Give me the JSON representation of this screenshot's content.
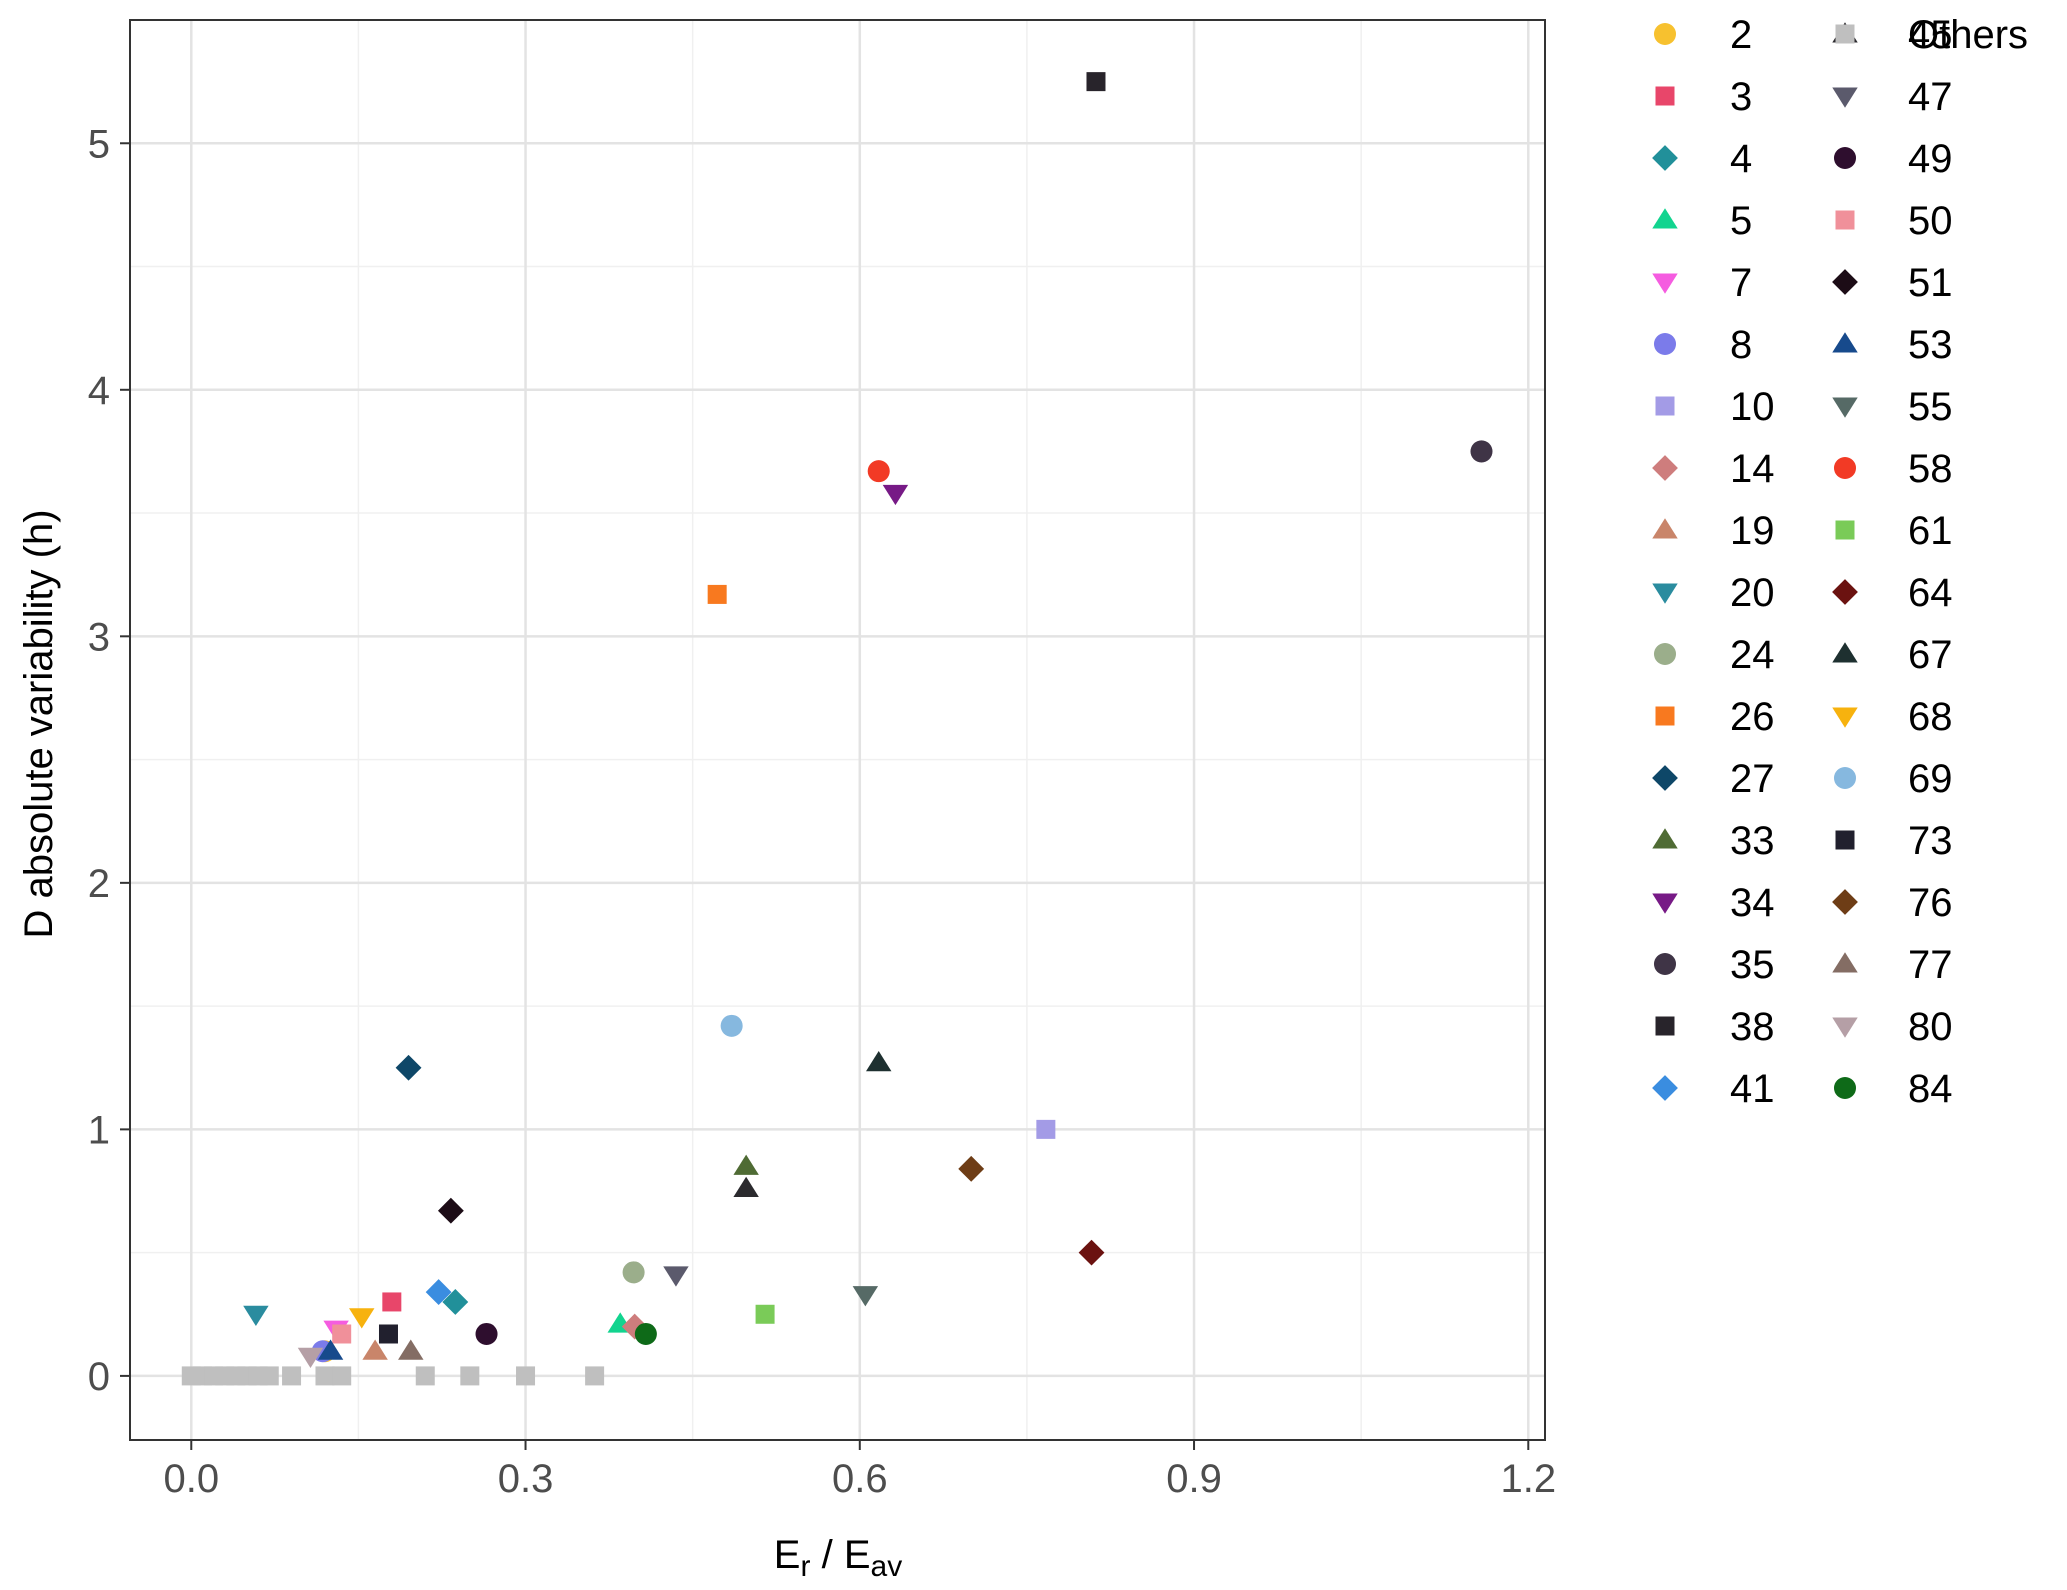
{
  "chart_data": {
    "type": "scatter",
    "xlabel": {
      "main": "E",
      "sub1": "r",
      "sep": " / E",
      "sub2": "av"
    },
    "ylabel": "D absolute variability (h)",
    "xlim": [
      -0.055,
      1.215
    ],
    "ylim": [
      -0.26,
      5.5
    ],
    "x_ticks": [
      0.0,
      0.3,
      0.6,
      0.9,
      1.2
    ],
    "x_tick_labels": [
      "0.0",
      "0.3",
      "0.6",
      "0.9",
      "1.2"
    ],
    "y_ticks": [
      0,
      1,
      2,
      3,
      4,
      5
    ],
    "y_tick_labels": [
      "0",
      "1",
      "2",
      "3",
      "4",
      "5"
    ],
    "grid": true,
    "legend_position": "right",
    "series": [
      {
        "name": "2",
        "color": "#F7C12F",
        "shape": "circle",
        "points": [
          [
            0.12,
            0.1
          ]
        ]
      },
      {
        "name": "3",
        "color": "#E8466A",
        "shape": "square",
        "points": [
          [
            0.18,
            0.3
          ]
        ]
      },
      {
        "name": "4",
        "color": "#21909A",
        "shape": "diamond",
        "points": [
          [
            0.237,
            0.3
          ]
        ]
      },
      {
        "name": "5",
        "color": "#12D48F",
        "shape": "triangle",
        "points": [
          [
            0.385,
            0.21
          ]
        ]
      },
      {
        "name": "7",
        "color": "#F55CE0",
        "shape": "tri-down",
        "points": [
          [
            0.13,
            0.19
          ]
        ]
      },
      {
        "name": "8",
        "color": "#7B7BEA",
        "shape": "circle",
        "points": [
          [
            0.118,
            0.1
          ]
        ]
      },
      {
        "name": "10",
        "color": "#A39BE6",
        "shape": "square",
        "points": [
          [
            0.767,
            1.0
          ]
        ]
      },
      {
        "name": "14",
        "color": "#CE7D7D",
        "shape": "diamond",
        "points": [
          [
            0.398,
            0.2
          ]
        ]
      },
      {
        "name": "19",
        "color": "#C9856A",
        "shape": "triangle",
        "points": [
          [
            0.165,
            0.1
          ]
        ]
      },
      {
        "name": "20",
        "color": "#2A8C9F",
        "shape": "tri-down",
        "points": [
          [
            0.058,
            0.25
          ]
        ]
      },
      {
        "name": "24",
        "color": "#9BAE8B",
        "shape": "circle",
        "points": [
          [
            0.397,
            0.42
          ]
        ]
      },
      {
        "name": "26",
        "color": "#F8791F",
        "shape": "square",
        "points": [
          [
            0.472,
            3.17
          ]
        ]
      },
      {
        "name": "27",
        "color": "#0E4768",
        "shape": "diamond",
        "points": [
          [
            0.195,
            1.25
          ]
        ]
      },
      {
        "name": "33",
        "color": "#4F6B34",
        "shape": "triangle",
        "points": [
          [
            0.498,
            0.85
          ]
        ]
      },
      {
        "name": "34",
        "color": "#771A86",
        "shape": "tri-down",
        "points": [
          [
            0.632,
            3.58
          ]
        ]
      },
      {
        "name": "35",
        "color": "#3F3446",
        "shape": "circle",
        "points": [
          [
            1.158,
            3.75
          ]
        ]
      },
      {
        "name": "38",
        "color": "#28242B",
        "shape": "square",
        "points": [
          [
            0.812,
            5.25
          ]
        ]
      },
      {
        "name": "41",
        "color": "#3A8DE0",
        "shape": "diamond",
        "points": [
          [
            0.222,
            0.34
          ]
        ]
      },
      {
        "name": "45",
        "color": "#2B2A2E",
        "shape": "triangle",
        "points": [
          [
            0.498,
            0.76
          ]
        ]
      },
      {
        "name": "47",
        "color": "#5B5A6C",
        "shape": "tri-down",
        "points": [
          [
            0.435,
            0.41
          ]
        ]
      },
      {
        "name": "49",
        "color": "#2E0E2E",
        "shape": "circle",
        "points": [
          [
            0.265,
            0.17
          ]
        ]
      },
      {
        "name": "50",
        "color": "#F0909A",
        "shape": "square",
        "points": [
          [
            0.135,
            0.17
          ]
        ]
      },
      {
        "name": "51",
        "color": "#1C0C16",
        "shape": "diamond",
        "points": [
          [
            0.233,
            0.67
          ]
        ]
      },
      {
        "name": "53",
        "color": "#174A8C",
        "shape": "triangle",
        "points": [
          [
            0.125,
            0.1
          ]
        ]
      },
      {
        "name": "55",
        "color": "#566A66",
        "shape": "tri-down",
        "points": [
          [
            0.605,
            0.33
          ]
        ]
      },
      {
        "name": "58",
        "color": "#F23A25",
        "shape": "circle",
        "points": [
          [
            0.617,
            3.67
          ]
        ]
      },
      {
        "name": "61",
        "color": "#7ACB58",
        "shape": "square",
        "points": [
          [
            0.515,
            0.25
          ]
        ]
      },
      {
        "name": "64",
        "color": "#6B1210",
        "shape": "diamond",
        "points": [
          [
            0.808,
            0.5
          ]
        ]
      },
      {
        "name": "67",
        "color": "#1E3030",
        "shape": "triangle",
        "points": [
          [
            0.617,
            1.27
          ]
        ]
      },
      {
        "name": "68",
        "color": "#F7B20E",
        "shape": "tri-down",
        "points": [
          [
            0.153,
            0.24
          ]
        ]
      },
      {
        "name": "69",
        "color": "#86B8DF",
        "shape": "circle",
        "points": [
          [
            0.485,
            1.42
          ]
        ]
      },
      {
        "name": "73",
        "color": "#21202E",
        "shape": "square",
        "points": [
          [
            0.177,
            0.17
          ]
        ]
      },
      {
        "name": "76",
        "color": "#6E3D16",
        "shape": "diamond",
        "points": [
          [
            0.7,
            0.84
          ]
        ]
      },
      {
        "name": "77",
        "color": "#846D64",
        "shape": "triangle",
        "points": [
          [
            0.197,
            0.1
          ]
        ]
      },
      {
        "name": "80",
        "color": "#B59FA6",
        "shape": "tri-down",
        "points": [
          [
            0.107,
            0.08
          ]
        ]
      },
      {
        "name": "84",
        "color": "#0E6A18",
        "shape": "circle",
        "points": [
          [
            0.408,
            0.17
          ]
        ]
      },
      {
        "name": "Others",
        "color": "#BFBFBF",
        "shape": "square",
        "points": [
          [
            0.0,
            0.0
          ],
          [
            0.01,
            0.0
          ],
          [
            0.02,
            0.0
          ],
          [
            0.03,
            0.0
          ],
          [
            0.04,
            0.0
          ],
          [
            0.05,
            0.0
          ],
          [
            0.06,
            0.0
          ],
          [
            0.07,
            0.0
          ],
          [
            0.09,
            0.0
          ],
          [
            0.12,
            0.0
          ],
          [
            0.135,
            0.0
          ],
          [
            0.21,
            0.0
          ],
          [
            0.25,
            0.0
          ],
          [
            0.3,
            0.0
          ],
          [
            0.362,
            0.0
          ]
        ]
      }
    ]
  }
}
